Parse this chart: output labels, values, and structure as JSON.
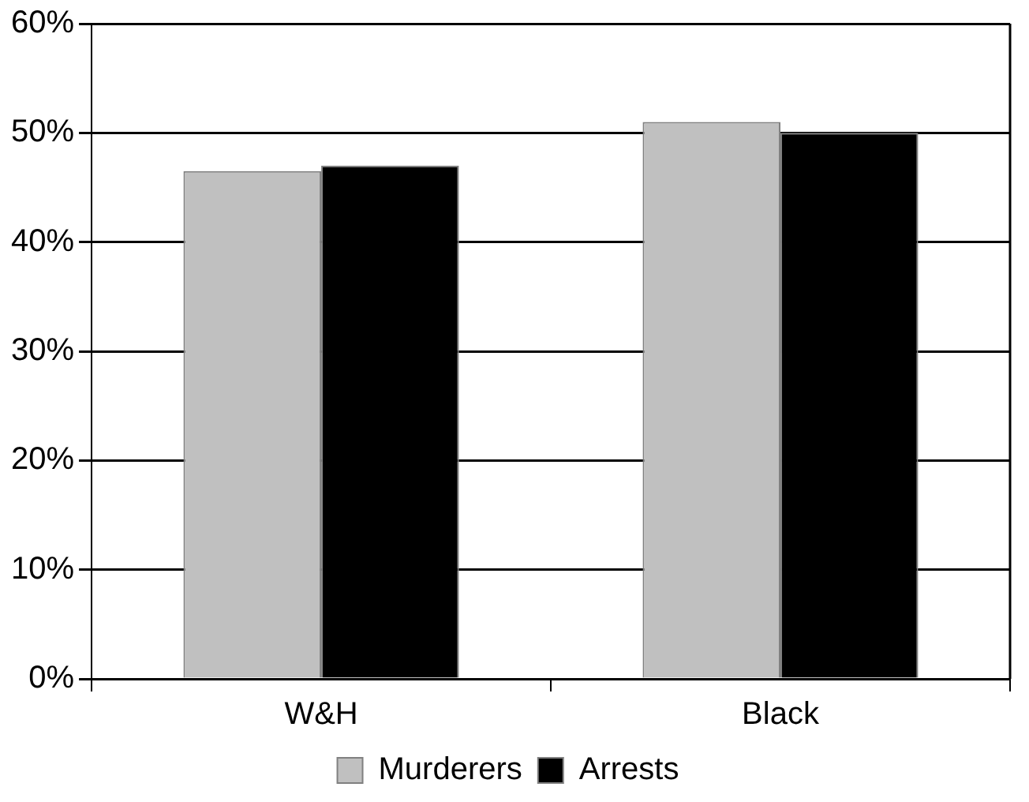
{
  "chart_data": {
    "type": "bar",
    "categories": [
      "W&H",
      "Black"
    ],
    "series": [
      {
        "name": "Murderers",
        "color": "#c0c0c0",
        "values": [
          46.5,
          51
        ]
      },
      {
        "name": "Arrests",
        "color": "#000000",
        "values": [
          47,
          50
        ]
      }
    ],
    "ylim": [
      0,
      60
    ],
    "yticks": [
      {
        "value": 0,
        "label": "0%"
      },
      {
        "value": 10,
        "label": "10%"
      },
      {
        "value": 20,
        "label": "20%"
      },
      {
        "value": 30,
        "label": "30%"
      },
      {
        "value": 40,
        "label": "40%"
      },
      {
        "value": 50,
        "label": "50%"
      },
      {
        "value": 60,
        "label": "60%"
      }
    ],
    "grid": "y",
    "legend": "bottom"
  }
}
